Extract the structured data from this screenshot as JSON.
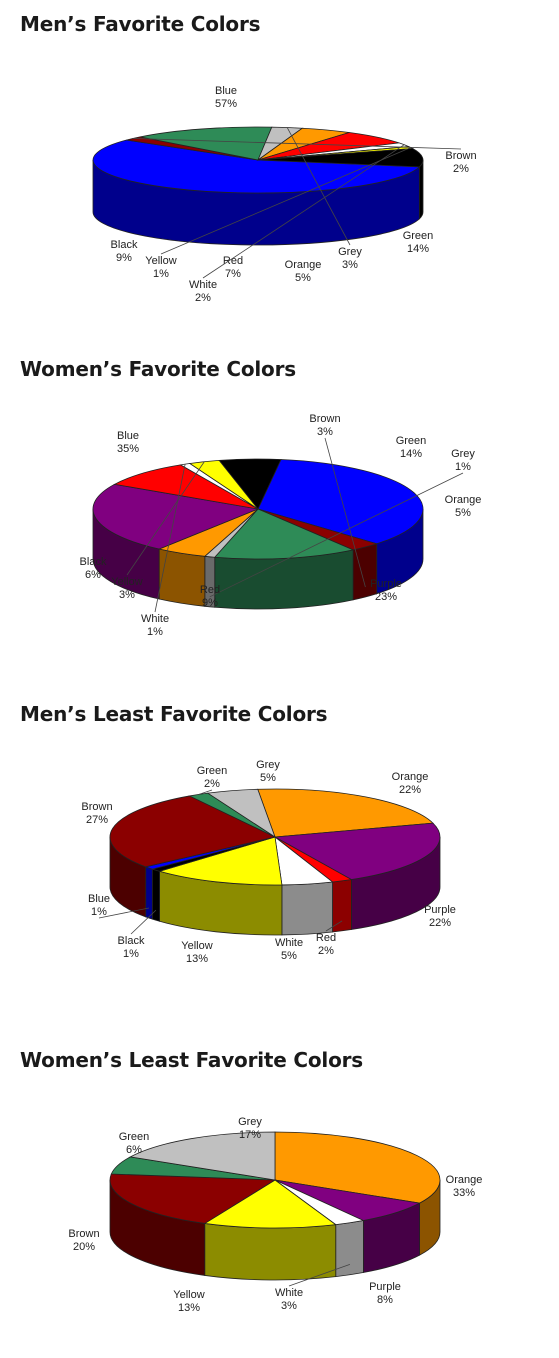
{
  "chart_data": [
    {
      "type": "pie",
      "title": "Men’s Favorite Colors",
      "slices": [
        {
          "label": "Blue",
          "value": 57,
          "display": "57%",
          "color": "#0000ff"
        },
        {
          "label": "Brown",
          "value": 2,
          "display": "2%",
          "color": "#8b0000"
        },
        {
          "label": "Green",
          "value": 14,
          "display": "14%",
          "color": "#2e8b57"
        },
        {
          "label": "Grey",
          "value": 3,
          "display": "3%",
          "color": "#c0c0c0"
        },
        {
          "label": "Orange",
          "value": 5,
          "display": "5%",
          "color": "#ff9900"
        },
        {
          "label": "Red",
          "value": 7,
          "display": "7%",
          "color": "#ff0000"
        },
        {
          "label": "White",
          "value": 2,
          "display": "2%",
          "color": "#ffffff"
        },
        {
          "label": "Yellow",
          "value": 1,
          "display": "1%",
          "color": "#ffff00"
        },
        {
          "label": "Black",
          "value": 9,
          "display": "9%",
          "color": "#000000"
        }
      ]
    },
    {
      "type": "pie",
      "title": "Women’s Favorite Colors",
      "slices": [
        {
          "label": "Blue",
          "value": 35,
          "display": "35%",
          "color": "#0000ff"
        },
        {
          "label": "Brown",
          "value": 3,
          "display": "3%",
          "color": "#8b0000"
        },
        {
          "label": "Green",
          "value": 14,
          "display": "14%",
          "color": "#2e8b57"
        },
        {
          "label": "Grey",
          "value": 1,
          "display": "1%",
          "color": "#c0c0c0"
        },
        {
          "label": "Orange",
          "value": 5,
          "display": "5%",
          "color": "#ff9900"
        },
        {
          "label": "Purple",
          "value": 23,
          "display": "23%",
          "color": "#800080"
        },
        {
          "label": "Red",
          "value": 9,
          "display": "9%",
          "color": "#ff0000"
        },
        {
          "label": "White",
          "value": 1,
          "display": "1%",
          "color": "#ffffff"
        },
        {
          "label": "Yellow",
          "value": 3,
          "display": "3%",
          "color": "#ffff00"
        },
        {
          "label": "Black",
          "value": 6,
          "display": "6%",
          "color": "#000000"
        }
      ]
    },
    {
      "type": "pie",
      "title": "Men’s Least Favorite Colors",
      "slices": [
        {
          "label": "Orange",
          "value": 22,
          "display": "22%",
          "color": "#ff9900"
        },
        {
          "label": "Purple",
          "value": 22,
          "display": "22%",
          "color": "#800080"
        },
        {
          "label": "Red",
          "value": 2,
          "display": "2%",
          "color": "#ff0000"
        },
        {
          "label": "White",
          "value": 5,
          "display": "5%",
          "color": "#ffffff"
        },
        {
          "label": "Yellow",
          "value": 13,
          "display": "13%",
          "color": "#ffff00"
        },
        {
          "label": "Black",
          "value": 1,
          "display": "1%",
          "color": "#000000"
        },
        {
          "label": "Blue",
          "value": 1,
          "display": "1%",
          "color": "#0000ff"
        },
        {
          "label": "Brown",
          "value": 27,
          "display": "27%",
          "color": "#8b0000"
        },
        {
          "label": "Green",
          "value": 2,
          "display": "2%",
          "color": "#2e8b57"
        },
        {
          "label": "Grey",
          "value": 5,
          "display": "5%",
          "color": "#c0c0c0"
        }
      ]
    },
    {
      "type": "pie",
      "title": "Women’s Least Favorite Colors",
      "slices": [
        {
          "label": "Orange",
          "value": 33,
          "display": "33%",
          "color": "#ff9900"
        },
        {
          "label": "Purple",
          "value": 8,
          "display": "8%",
          "color": "#800080"
        },
        {
          "label": "White",
          "value": 3,
          "display": "3%",
          "color": "#ffffff"
        },
        {
          "label": "Yellow",
          "value": 13,
          "display": "13%",
          "color": "#ffff00"
        },
        {
          "label": "Brown",
          "value": 20,
          "display": "20%",
          "color": "#8b0000"
        },
        {
          "label": "Green",
          "value": 6,
          "display": "6%",
          "color": "#2e8b57"
        },
        {
          "label": "Grey",
          "value": 17,
          "display": "17%",
          "color": "#c0c0c0"
        }
      ]
    }
  ]
}
